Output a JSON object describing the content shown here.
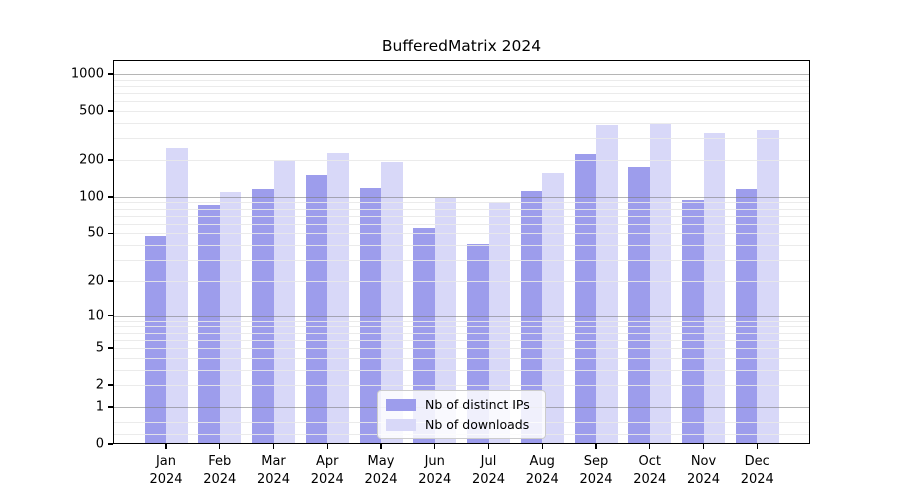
{
  "chart_data": {
    "type": "bar",
    "title": "BufferedMatrix 2024",
    "categories": [
      "Jan 2024",
      "Feb 2024",
      "Mar 2024",
      "Apr 2024",
      "May 2024",
      "Jun 2024",
      "Jul 2024",
      "Aug 2024",
      "Sep 2024",
      "Oct 2024",
      "Nov 2024",
      "Dec 2024"
    ],
    "series": [
      {
        "name": "Nb of distinct IPs",
        "color": "#9d9dec",
        "values": [
          48,
          86,
          116,
          151,
          118,
          55,
          41,
          111,
          222,
          176,
          95,
          117
        ]
      },
      {
        "name": "Nb of downloads",
        "color": "#d8d8f8",
        "values": [
          250,
          110,
          198,
          228,
          192,
          98,
          90,
          158,
          386,
          392,
          334,
          352
        ]
      }
    ],
    "xlabel": "",
    "ylabel": "",
    "yscale": "log1p",
    "ylim": [
      0,
      1300
    ],
    "y_ticks": [
      0,
      1,
      2,
      5,
      10,
      20,
      50,
      100,
      200,
      500,
      1000
    ],
    "y_tick_labels": [
      "0",
      "1",
      "2",
      "5",
      "10",
      "20",
      "50",
      "100",
      "200",
      "500",
      "1000"
    ],
    "grid": true,
    "grid_minor_values": [
      0.2,
      0.5,
      2,
      3,
      4,
      5,
      6,
      7,
      8,
      9,
      20,
      30,
      40,
      50,
      60,
      70,
      80,
      90,
      200,
      300,
      400,
      500,
      600,
      700,
      800,
      900
    ],
    "grid_major_values": [
      1,
      10,
      100,
      1000
    ],
    "legend_position": "lower center",
    "colors": {
      "grid_minor": "rgba(233,233,233,0.9)",
      "grid_major": "rgba(120,120,120,0.55)",
      "axis": "#000000",
      "legend_border": "#cccccc",
      "legend_background": "rgba(255,255,255,0.85)",
      "background": "#ffffff"
    }
  }
}
